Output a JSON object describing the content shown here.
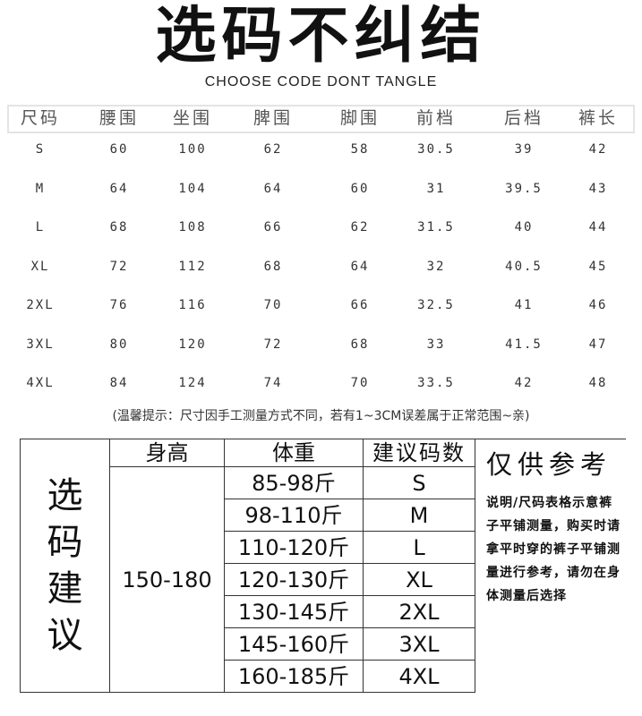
{
  "title": "选码不纠结",
  "subtitle": "CHOOSE CODE DONT TANGLE",
  "size_table": {
    "headers": [
      "尺码",
      "腰围",
      "坐围",
      "脾围",
      "脚围",
      "前档",
      "后档",
      "裤长"
    ],
    "rows": [
      [
        "S",
        "60",
        "100",
        "62",
        "58",
        "30.5",
        "39",
        "42"
      ],
      [
        "M",
        "64",
        "104",
        "64",
        "60",
        "31",
        "39.5",
        "43"
      ],
      [
        "L",
        "68",
        "108",
        "66",
        "62",
        "31.5",
        "40",
        "44"
      ],
      [
        "XL",
        "72",
        "112",
        "68",
        "64",
        "32",
        "40.5",
        "45"
      ],
      [
        "2XL",
        "76",
        "116",
        "70",
        "66",
        "32.5",
        "41",
        "46"
      ],
      [
        "3XL",
        "80",
        "120",
        "72",
        "68",
        "33",
        "41.5",
        "47"
      ],
      [
        "4XL",
        "84",
        "124",
        "74",
        "70",
        "33.5",
        "42",
        "48"
      ]
    ]
  },
  "note": "(温馨提示：尺寸因手工测量方式不同，若有1~3CM误差属于正常范围~亲)",
  "suggest": {
    "side_label": "选码建议",
    "headers": [
      "身高",
      "体重",
      "建议码数"
    ],
    "height": "150-180",
    "rows": [
      [
        "85-98斤",
        "S"
      ],
      [
        "98-110斤",
        "M"
      ],
      [
        "110-120斤",
        "L"
      ],
      [
        "120-130斤",
        "XL"
      ],
      [
        "130-145斤",
        "2XL"
      ],
      [
        "145-160斤",
        "3XL"
      ],
      [
        "160-185斤",
        "4XL"
      ]
    ],
    "ref_title": "仅供参考",
    "ref_text": "说明/尺码表格示意裤子平铺测量，购买时请拿平时穿的裤子平铺测量进行参考，请勿在身体测量后选择"
  }
}
